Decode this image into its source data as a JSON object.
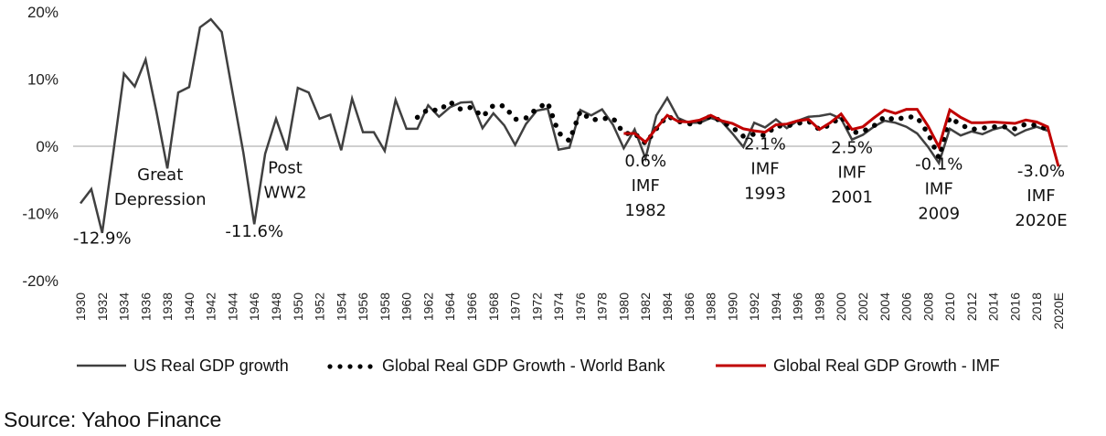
{
  "chart_data": {
    "type": "line",
    "title": "",
    "xlabel": "",
    "ylabel": "",
    "ylim": [
      -20,
      20
    ],
    "yticks": [
      20,
      10,
      0,
      -10,
      -20
    ],
    "ytick_labels": [
      "20%",
      "10%",
      "0%",
      "-10%",
      "-20%"
    ],
    "x_start": 1930,
    "x_end": 2020,
    "xtick_labels": [
      "1930",
      "1932",
      "1934",
      "1936",
      "1938",
      "1940",
      "1942",
      "1944",
      "1946",
      "1948",
      "1950",
      "1952",
      "1954",
      "1956",
      "1958",
      "1960",
      "1962",
      "1964",
      "1966",
      "1968",
      "1970",
      "1972",
      "1974",
      "1976",
      "1978",
      "1980",
      "1982",
      "1984",
      "1986",
      "1988",
      "1990",
      "1992",
      "1994",
      "1996",
      "1998",
      "2000",
      "2002",
      "2004",
      "2006",
      "2008",
      "2010",
      "2012",
      "2014",
      "2016",
      "2018",
      "2020E"
    ],
    "grid": "zero-line only",
    "legend_position": "bottom",
    "series": [
      {
        "name": "US Real GDP growth",
        "color": "#404040",
        "style": "solid",
        "start_year": 1930,
        "values": [
          -8.5,
          -6.4,
          -12.9,
          -1.2,
          10.8,
          8.9,
          12.9,
          5.1,
          -3.3,
          8.0,
          8.8,
          17.7,
          18.9,
          17.0,
          8.0,
          -1.0,
          -11.6,
          -1.1,
          4.1,
          -0.6,
          8.7,
          8.0,
          4.1,
          4.7,
          -0.6,
          7.1,
          2.1,
          2.1,
          -0.7,
          6.9,
          2.6,
          2.6,
          6.1,
          4.4,
          5.8,
          6.5,
          6.6,
          2.7,
          4.9,
          3.1,
          0.2,
          3.3,
          5.3,
          5.6,
          -0.5,
          -0.2,
          5.4,
          4.6,
          5.5,
          3.2,
          -0.3,
          2.5,
          -1.8,
          4.6,
          7.2,
          4.2,
          3.5,
          3.5,
          4.2,
          3.7,
          1.9,
          -0.1,
          3.5,
          2.8,
          4.0,
          2.7,
          3.8,
          4.4,
          4.5,
          4.8,
          4.1,
          1.0,
          1.7,
          2.9,
          3.8,
          3.5,
          2.9,
          1.9,
          -0.1,
          -2.5,
          2.6,
          1.6,
          2.2,
          1.8,
          2.5,
          2.9,
          1.6,
          2.4,
          2.9,
          2.3
        ]
      },
      {
        "name": "Global Real GDP Growth - World Bank",
        "color": "#000000",
        "style": "dotted",
        "start_year": 1961,
        "values": [
          4.3,
          5.5,
          5.3,
          6.6,
          5.5,
          5.8,
          4.4,
          6.1,
          6.0,
          4.0,
          4.2,
          5.6,
          6.5,
          2.0,
          0.8,
          5.2,
          3.9,
          4.1,
          4.2,
          1.9,
          1.9,
          0.4,
          2.6,
          4.5,
          3.7,
          3.3,
          3.6,
          4.5,
          3.7,
          2.8,
          1.5,
          1.8,
          1.6,
          3.0,
          3.0,
          3.4,
          3.7,
          2.5,
          3.2,
          4.4,
          2.0,
          2.2,
          3.0,
          4.4,
          3.9,
          4.4,
          4.3,
          1.9,
          -1.7,
          4.3,
          3.2,
          2.5,
          2.7,
          2.9,
          2.9,
          2.6,
          3.3,
          3.1,
          2.5
        ]
      },
      {
        "name": "Global Real GDP Growth - IMF",
        "color": "#c00000",
        "style": "solid",
        "start_year": 1980,
        "values": [
          1.9,
          1.9,
          0.6,
          2.7,
          4.6,
          3.7,
          3.6,
          3.9,
          4.6,
          3.8,
          3.4,
          2.6,
          2.3,
          2.1,
          3.2,
          3.3,
          3.8,
          4.0,
          2.5,
          3.5,
          4.8,
          2.5,
          2.9,
          4.2,
          5.4,
          4.9,
          5.5,
          5.5,
          3.0,
          -0.1,
          5.4,
          4.3,
          3.5,
          3.5,
          3.6,
          3.5,
          3.4,
          3.9,
          3.6,
          2.9,
          -3.0
        ]
      }
    ],
    "annotations": [
      {
        "lines": [
          "Great",
          "Depression"
        ],
        "year": 1937,
        "value": -5
      },
      {
        "lines": [
          "-12.9%"
        ],
        "year": 1932,
        "value": -14.5
      },
      {
        "lines": [
          "Post",
          "WW2"
        ],
        "year": 1948,
        "value": -4
      },
      {
        "lines": [
          "-11.6%"
        ],
        "year": 1946,
        "value": -13.5
      },
      {
        "lines": [
          "0.6%",
          "IMF",
          "1982"
        ],
        "year": 1982,
        "value": -3
      },
      {
        "lines": [
          "2.1%",
          "IMF",
          "1993"
        ],
        "year": 1993,
        "value": -0.5
      },
      {
        "lines": [
          "2.5%",
          "IMF",
          "2001"
        ],
        "year": 2001,
        "value": -1
      },
      {
        "lines": [
          "-0.1%",
          "IMF",
          "2009"
        ],
        "year": 2009,
        "value": -3.5
      },
      {
        "lines": [
          "-3.0%",
          "IMF",
          "2020E"
        ],
        "year": 2020,
        "value": -4.5
      }
    ]
  },
  "legend": {
    "items": [
      {
        "label": "US Real GDP growth"
      },
      {
        "label": "Global Real GDP Growth - World Bank"
      },
      {
        "label": "Global Real GDP Growth - IMF"
      }
    ]
  },
  "source": "Source: Yahoo Finance"
}
